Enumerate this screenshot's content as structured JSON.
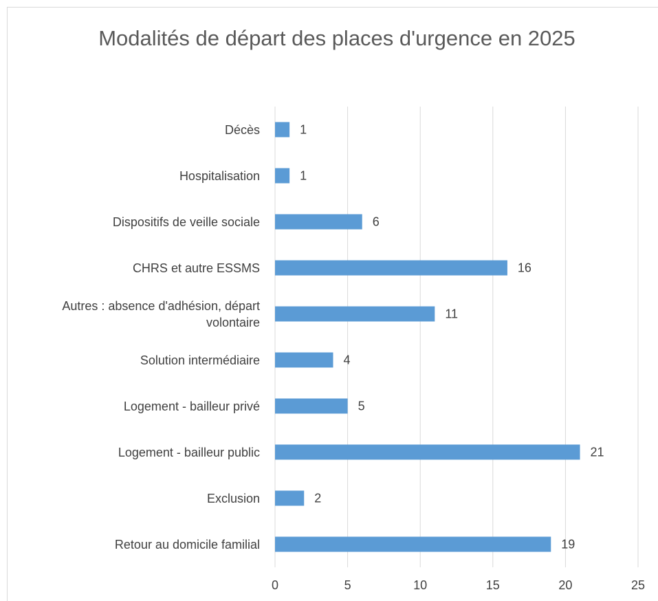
{
  "chart_data": {
    "type": "bar",
    "orientation": "horizontal",
    "title": "Modalités de départ des places d'urgence en 2025",
    "categories": [
      "Décès",
      "Hospitalisation",
      "Dispositifs de veille sociale",
      "CHRS et autre ESSMS",
      "Autres : absence d'adhésion, départ volontaire",
      "Solution intermédiaire",
      "Logement - bailleur privé",
      "Logement - bailleur public",
      "Exclusion",
      "Retour au domicile familial"
    ],
    "values": [
      1,
      1,
      6,
      16,
      11,
      4,
      5,
      21,
      2,
      19
    ],
    "color": "#5b9bd5",
    "xlim": [
      0,
      25
    ],
    "xticks": [
      0,
      5,
      10,
      15,
      20,
      25
    ],
    "grid": true
  }
}
